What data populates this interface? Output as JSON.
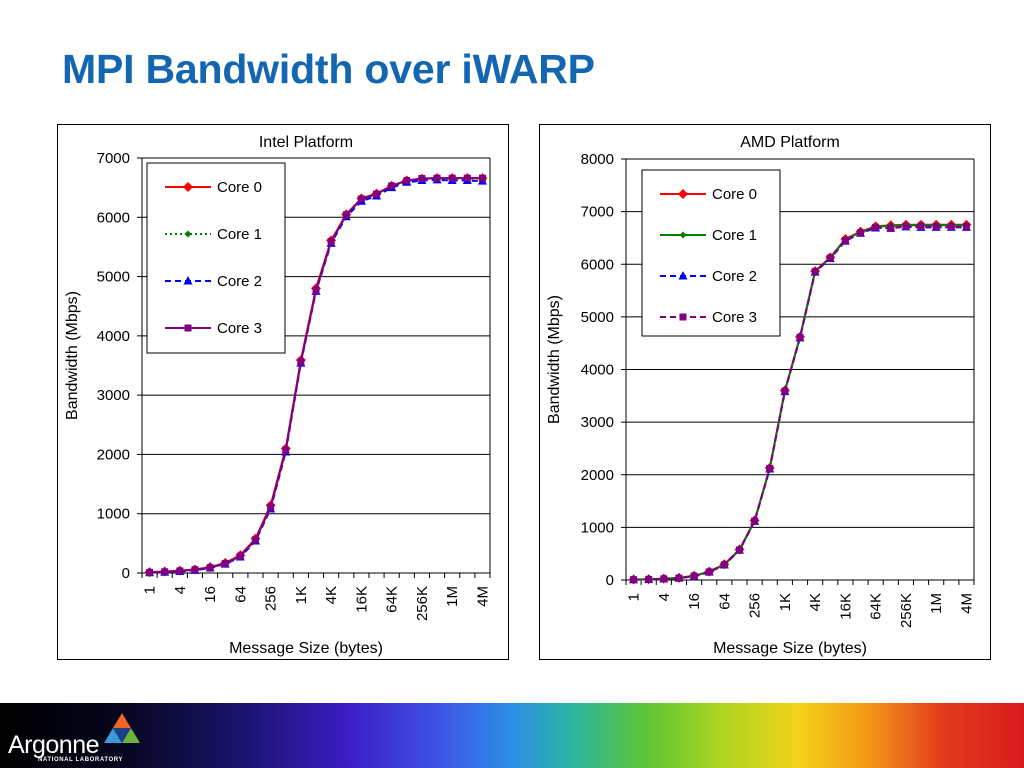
{
  "slide": {
    "title": "MPI Bandwidth over iWARP"
  },
  "footer": {
    "logo_name": "Argonne",
    "logo_sub": "NATIONAL LABORATORY",
    "logo_colors": {
      "top": "#f26522",
      "left": "#3a9ad9",
      "right": "#6ab43e",
      "mid": "#1b3f8b"
    }
  },
  "chart_data": [
    {
      "id": "intel",
      "type": "line",
      "title": "Intel Platform",
      "xlabel": "Message Size (bytes)",
      "ylabel": "Bandwidth (Mbps)",
      "ylim": [
        0,
        7000
      ],
      "yticks": [
        0,
        1000,
        2000,
        3000,
        4000,
        5000,
        6000,
        7000
      ],
      "grid": true,
      "legend": "top-left",
      "x_exponents": [
        0,
        1,
        2,
        3,
        4,
        5,
        6,
        7,
        8,
        9,
        10,
        11,
        12,
        13,
        14,
        15,
        16,
        17,
        18,
        19,
        20,
        21,
        22
      ],
      "x_tick_labels": [
        "1",
        "4",
        "16",
        "64",
        "256",
        "1K",
        "4K",
        "16K",
        "64K",
        "256K",
        "1M",
        "4M"
      ],
      "series": [
        {
          "name": "Core 0",
          "color": "#ff0000",
          "marker": "diamond",
          "dash": "solid",
          "values": [
            15,
            25,
            40,
            60,
            100,
            170,
            300,
            580,
            1140,
            2100,
            3590,
            4800,
            5610,
            6050,
            6320,
            6400,
            6530,
            6620,
            6650,
            6660,
            6660,
            6660,
            6660
          ]
        },
        {
          "name": "Core 1",
          "color": "#008000",
          "marker": "diamond-small",
          "dash": "dotted",
          "values": [
            12,
            22,
            36,
            56,
            95,
            165,
            290,
            570,
            1120,
            2080,
            3570,
            4780,
            5590,
            6030,
            6300,
            6390,
            6520,
            6610,
            6645,
            6655,
            6655,
            6655,
            6655
          ]
        },
        {
          "name": "Core 2",
          "color": "#0000ff",
          "marker": "triangle",
          "dash": "dashed",
          "values": [
            5,
            12,
            25,
            45,
            85,
            150,
            270,
            540,
            1080,
            2040,
            3540,
            4750,
            5560,
            6010,
            6270,
            6360,
            6500,
            6590,
            6620,
            6630,
            6620,
            6620,
            6610
          ]
        },
        {
          "name": "Core 3",
          "color": "#800080",
          "marker": "square",
          "dash": "solid",
          "values": [
            10,
            20,
            35,
            55,
            90,
            160,
            285,
            560,
            1110,
            2070,
            3560,
            4770,
            5590,
            6040,
            6310,
            6390,
            6530,
            6620,
            6655,
            6660,
            6660,
            6660,
            6660
          ]
        }
      ]
    },
    {
      "id": "amd",
      "type": "line",
      "title": "AMD Platform",
      "xlabel": "Message Size (bytes)",
      "ylabel": "Bandwidth (Mbps)",
      "ylim": [
        0,
        8000
      ],
      "yticks": [
        0,
        1000,
        2000,
        3000,
        4000,
        5000,
        6000,
        7000,
        8000
      ],
      "grid": true,
      "legend": "top-left",
      "x_exponents": [
        0,
        1,
        2,
        3,
        4,
        5,
        6,
        7,
        8,
        9,
        10,
        11,
        12,
        13,
        14,
        15,
        16,
        17,
        18,
        19,
        20,
        21,
        22
      ],
      "x_tick_labels": [
        "1",
        "4",
        "16",
        "64",
        "256",
        "1K",
        "4K",
        "16K",
        "64K",
        "256K",
        "1M",
        "4M"
      ],
      "series": [
        {
          "name": "Core 0",
          "color": "#ff0000",
          "marker": "diamond",
          "dash": "solid",
          "values": [
            10,
            15,
            25,
            40,
            80,
            160,
            300,
            580,
            1130,
            2130,
            3600,
            4620,
            5870,
            6130,
            6480,
            6620,
            6720,
            6740,
            6750,
            6750,
            6750,
            6750,
            6750
          ]
        },
        {
          "name": "Core 1",
          "color": "#008000",
          "marker": "diamond-small",
          "dash": "solid",
          "values": [
            8,
            12,
            22,
            38,
            75,
            155,
            290,
            570,
            1120,
            2120,
            3590,
            4610,
            5860,
            6120,
            6470,
            6610,
            6710,
            6730,
            6740,
            6740,
            6740,
            6740,
            6740
          ]
        },
        {
          "name": "Core 2",
          "color": "#0000ff",
          "marker": "triangle",
          "dash": "dashed",
          "values": [
            5,
            10,
            20,
            35,
            70,
            150,
            285,
            565,
            1115,
            2110,
            3580,
            4600,
            5850,
            6110,
            6440,
            6590,
            6690,
            6690,
            6710,
            6700,
            6700,
            6700,
            6700
          ]
        },
        {
          "name": "Core 3",
          "color": "#800080",
          "marker": "square",
          "dash": "dashed",
          "values": [
            7,
            12,
            22,
            37,
            74,
            154,
            290,
            570,
            1120,
            2120,
            3590,
            4610,
            5860,
            6120,
            6450,
            6600,
            6700,
            6680,
            6720,
            6720,
            6710,
            6710,
            6710
          ]
        }
      ]
    }
  ]
}
